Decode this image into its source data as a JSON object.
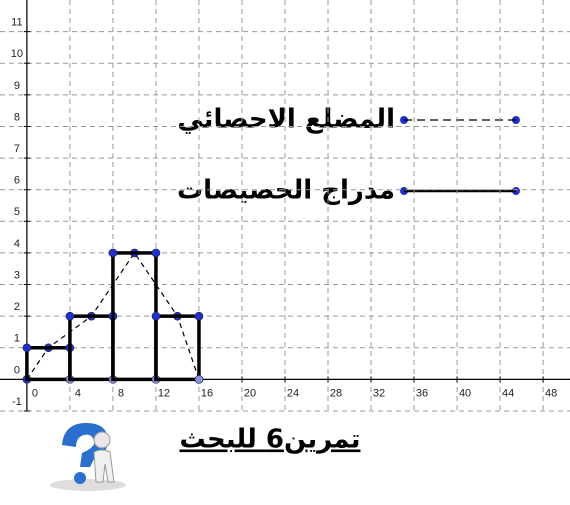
{
  "chart_data": {
    "type": "histogram",
    "xlim": [
      -2.5,
      50.5
    ],
    "ylim": [
      -1,
      12
    ],
    "xticks": [
      0,
      4,
      8,
      12,
      16,
      20,
      24,
      28,
      32,
      36,
      40,
      44,
      48
    ],
    "yticks": [
      -1,
      0,
      1,
      2,
      3,
      4,
      5,
      6,
      7,
      8,
      9,
      10,
      11
    ],
    "grid": true,
    "series": [
      {
        "name": "المضلع الاحصائي",
        "type": "line",
        "dashed": true,
        "color": "#000000",
        "marker_color": "#1f2fd6",
        "x": [
          0,
          2,
          6,
          10,
          14,
          16
        ],
        "values": [
          0,
          1,
          2,
          4,
          2,
          0
        ]
      },
      {
        "name": "مدراج الحصيصات",
        "type": "histogram",
        "color": "#000000",
        "marker_color": "#1f2fd6",
        "bins": [
          0,
          4,
          8,
          12,
          16
        ],
        "values": [
          1,
          2,
          4,
          2
        ]
      }
    ]
  },
  "caption": "تمرين6 للبحث"
}
